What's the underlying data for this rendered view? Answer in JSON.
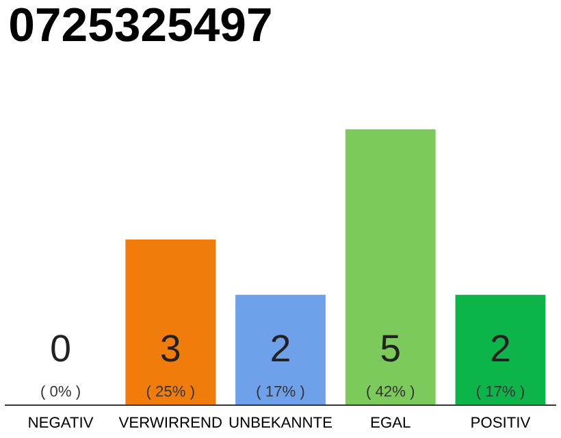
{
  "chart_data": {
    "type": "bar",
    "title": "0725325497",
    "categories": [
      "NEGATIV",
      "VERWIRREND",
      "UNBEKANNTE",
      "EGAL",
      "POSITIV"
    ],
    "values": [
      0,
      3,
      2,
      5,
      2
    ],
    "colors": [
      "#9a9a9a",
      "#f07d0b",
      "#6fa0ea",
      "#7dca5c",
      "#0db44a"
    ],
    "value_labels": [
      "0\n( 0% )",
      "3\n( 25% )",
      "2\n( 17% )",
      "5\n( 42% )",
      "2\n( 17% )"
    ],
    "ylim": [
      0,
      5
    ],
    "tick_labels": "x",
    "grid": false,
    "legend": false
  }
}
